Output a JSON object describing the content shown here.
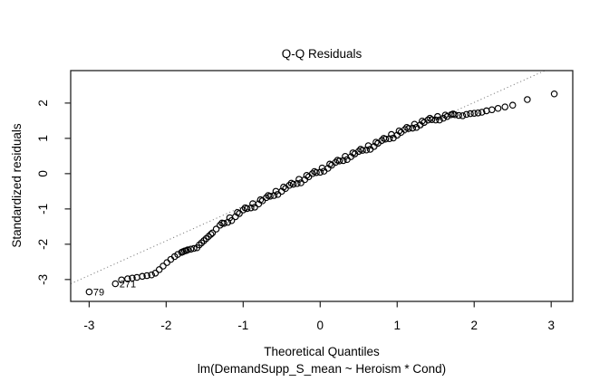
{
  "colors": {
    "background": "#ffffff",
    "points": "#000000",
    "frame": "#222222",
    "reference_line": "#808080",
    "text": "#000000"
  },
  "chart_data": {
    "type": "scatter",
    "title": "Q-Q Residuals",
    "xlabel": "Theoretical Quantiles",
    "subtitle": "lm(DemandSupp_S_mean ~ Heroism * Cond)",
    "ylabel": "Standardized residuals",
    "xlim": [
      -3.24,
      3.28
    ],
    "ylim": [
      -3.62,
      2.92
    ],
    "x_ticks": [
      -3,
      -2,
      -1,
      0,
      1,
      2,
      3
    ],
    "y_ticks": [
      -3,
      -2,
      -1,
      0,
      1,
      2
    ],
    "grid": false,
    "legend": null,
    "marker": {
      "shape": "open-circle",
      "radius_px": 3.2,
      "stroke_px": 1.15,
      "color": "#000000"
    },
    "reference_line": {
      "style": "dotted",
      "color": "#808080",
      "x1": -3.24,
      "y1": -3.12,
      "x2": 2.92,
      "y2": 2.92
    },
    "labeled_points": [
      {
        "label": "79",
        "x": -3.0,
        "y": -3.35
      },
      {
        "label": "271",
        "x": -2.66,
        "y": -3.12
      }
    ],
    "points": [
      [
        -3.0,
        -3.35
      ],
      [
        -2.66,
        -3.12
      ],
      [
        -2.58,
        -3.01
      ],
      [
        -2.5,
        -2.98
      ],
      [
        -2.44,
        -2.96
      ],
      [
        -2.38,
        -2.94
      ],
      [
        -2.31,
        -2.91
      ],
      [
        -2.25,
        -2.89
      ],
      [
        -2.19,
        -2.87
      ],
      [
        -2.14,
        -2.82
      ],
      [
        -2.09,
        -2.72
      ],
      [
        -2.04,
        -2.62
      ],
      [
        -1.99,
        -2.52
      ],
      [
        -1.94,
        -2.43
      ],
      [
        -1.89,
        -2.35
      ],
      [
        -1.85,
        -2.29
      ],
      [
        -1.8,
        -2.23
      ],
      [
        -1.78,
        -2.21
      ],
      [
        -1.76,
        -2.19
      ],
      [
        -1.74,
        -2.18
      ],
      [
        -1.72,
        -2.16
      ],
      [
        -1.68,
        -2.14
      ],
      [
        -1.64,
        -2.12
      ],
      [
        -1.6,
        -2.1
      ],
      [
        -1.57,
        -2.02
      ],
      [
        -1.54,
        -1.96
      ],
      [
        -1.51,
        -1.9
      ],
      [
        -1.48,
        -1.84
      ],
      [
        -1.45,
        -1.78
      ],
      [
        -1.42,
        -1.72
      ],
      [
        -1.4,
        -1.68
      ],
      [
        -1.35,
        -1.57
      ],
      [
        -1.3,
        -1.46
      ],
      [
        -1.25,
        -1.41
      ],
      [
        -1.2,
        -1.38
      ],
      [
        -1.15,
        -1.33
      ],
      [
        -1.1,
        -1.22
      ],
      [
        -1.05,
        -1.13
      ],
      [
        -1.0,
        -1.03
      ],
      [
        -0.95,
        -0.99
      ],
      [
        -0.9,
        -0.97
      ],
      [
        -0.85,
        -0.95
      ],
      [
        -0.8,
        -0.86
      ],
      [
        -0.75,
        -0.77
      ],
      [
        -0.7,
        -0.68
      ],
      [
        -0.65,
        -0.64
      ],
      [
        -0.6,
        -0.62
      ],
      [
        -0.55,
        -0.59
      ],
      [
        -0.5,
        -0.5
      ],
      [
        -0.45,
        -0.42
      ],
      [
        -0.4,
        -0.33
      ],
      [
        -0.35,
        -0.3
      ],
      [
        -0.3,
        -0.28
      ],
      [
        -0.25,
        -0.26
      ],
      [
        -0.2,
        -0.17
      ],
      [
        -0.15,
        -0.09
      ],
      [
        -0.1,
        0.0
      ],
      [
        -0.05,
        0.03
      ],
      [
        0.0,
        0.04
      ],
      [
        0.05,
        0.07
      ],
      [
        0.1,
        0.15
      ],
      [
        0.15,
        0.24
      ],
      [
        0.2,
        0.32
      ],
      [
        0.25,
        0.36
      ],
      [
        0.3,
        0.37
      ],
      [
        0.35,
        0.4
      ],
      [
        0.4,
        0.48
      ],
      [
        0.45,
        0.56
      ],
      [
        0.5,
        0.63
      ],
      [
        0.55,
        0.66
      ],
      [
        0.6,
        0.67
      ],
      [
        0.65,
        0.69
      ],
      [
        0.7,
        0.77
      ],
      [
        0.75,
        0.86
      ],
      [
        0.8,
        0.94
      ],
      [
        0.85,
        0.98
      ],
      [
        0.9,
        0.99
      ],
      [
        0.95,
        1.01
      ],
      [
        1.0,
        1.09
      ],
      [
        1.05,
        1.17
      ],
      [
        1.1,
        1.25
      ],
      [
        1.15,
        1.28
      ],
      [
        1.2,
        1.29
      ],
      [
        1.25,
        1.31
      ],
      [
        1.3,
        1.38
      ],
      [
        1.35,
        1.45
      ],
      [
        1.4,
        1.52
      ],
      [
        1.45,
        1.53
      ],
      [
        1.5,
        1.52
      ],
      [
        1.55,
        1.52
      ],
      [
        1.6,
        1.57
      ],
      [
        1.65,
        1.62
      ],
      [
        1.7,
        1.67
      ],
      [
        1.75,
        1.67
      ],
      [
        1.8,
        1.65
      ],
      [
        1.85,
        1.64
      ],
      [
        1.9,
        1.68
      ],
      [
        -1.275,
        -1.4
      ],
      [
        -1.175,
        -1.25
      ],
      [
        -1.075,
        -1.1
      ],
      [
        -0.975,
        -0.97
      ],
      [
        -0.875,
        -0.85
      ],
      [
        -0.775,
        -0.74
      ],
      [
        -0.675,
        -0.62
      ],
      [
        -0.575,
        -0.5
      ],
      [
        -0.475,
        -0.38
      ],
      [
        -0.375,
        -0.27
      ],
      [
        -0.275,
        -0.16
      ],
      [
        -0.175,
        -0.05
      ],
      [
        -0.075,
        0.06
      ],
      [
        0.025,
        0.16
      ],
      [
        0.125,
        0.27
      ],
      [
        0.225,
        0.38
      ],
      [
        0.325,
        0.49
      ],
      [
        0.425,
        0.59
      ],
      [
        0.525,
        0.69
      ],
      [
        0.625,
        0.79
      ],
      [
        0.725,
        0.89
      ],
      [
        0.825,
        1.0
      ],
      [
        0.925,
        1.11
      ],
      [
        1.025,
        1.21
      ],
      [
        1.125,
        1.31
      ],
      [
        1.225,
        1.4
      ],
      [
        1.325,
        1.49
      ],
      [
        1.425,
        1.57
      ],
      [
        1.525,
        1.62
      ],
      [
        1.625,
        1.66
      ],
      [
        1.725,
        1.69
      ],
      [
        1.95,
        1.7
      ],
      [
        2.0,
        1.71
      ],
      [
        2.05,
        1.72
      ],
      [
        2.1,
        1.74
      ],
      [
        2.16,
        1.78
      ],
      [
        2.23,
        1.81
      ],
      [
        2.31,
        1.85
      ],
      [
        2.4,
        1.89
      ],
      [
        2.5,
        1.94
      ],
      [
        2.69,
        2.1
      ],
      [
        3.04,
        2.26
      ]
    ]
  }
}
